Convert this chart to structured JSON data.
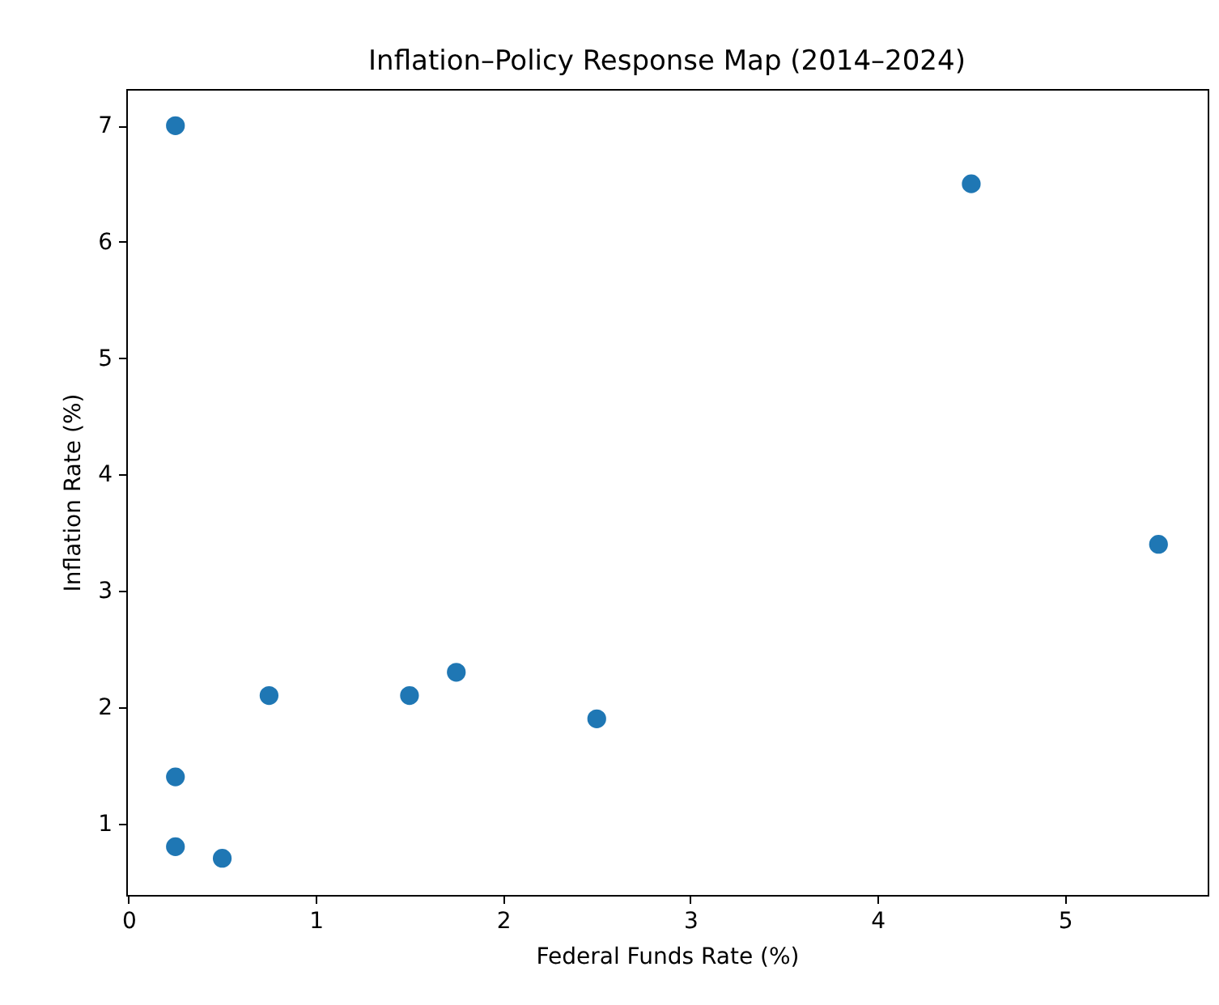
{
  "chart_data": {
    "type": "scatter",
    "title": "Inflation–Policy Response Map (2014–2024)",
    "xlabel": "Federal Funds Rate (%)",
    "ylabel": "Inflation Rate (%)",
    "x": [
      0.25,
      4.5,
      5.5,
      0.75,
      1.5,
      1.75,
      2.5,
      0.25,
      0.25,
      0.5
    ],
    "series": [
      {
        "color": "#1f77b4",
        "values": [
          7,
          6.5,
          3.4,
          2.1,
          2.1,
          2.3,
          1.9,
          1.4,
          0.8,
          0.7
        ]
      }
    ],
    "xlim": [
      -0.0125,
      5.7625
    ],
    "ylim": [
      0.385,
      7.315
    ],
    "xticks": [
      0,
      1,
      2,
      3,
      4,
      5
    ],
    "yticks": [
      1,
      2,
      3,
      4,
      5,
      6,
      7
    ],
    "grid": false,
    "marker": "circle"
  }
}
